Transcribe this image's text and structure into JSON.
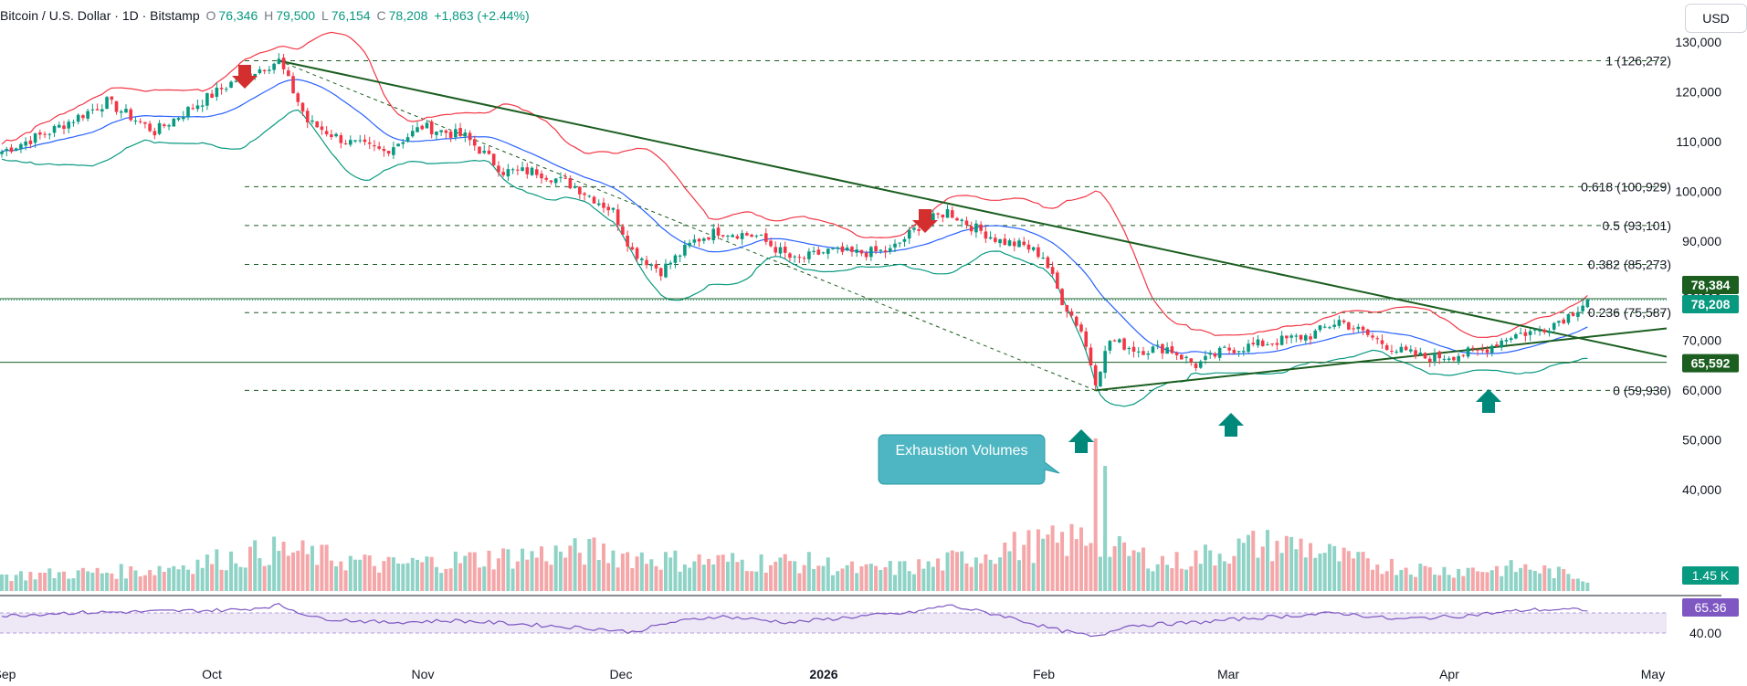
{
  "header": {
    "symbol": "Bitcoin / U.S. Dollar · 1D · Bitstamp",
    "open_label": "O",
    "open": "76,346",
    "high_label": "H",
    "high": "79,500",
    "low_label": "L",
    "low": "76,154",
    "close_label": "C",
    "close": "78,208",
    "change": "+1,863 (+2.44%)"
  },
  "currency_button": "USD",
  "chart_data": {
    "type": "candlestick",
    "price_axis": {
      "ticks": [
        "130,000",
        "120,000",
        "110,000",
        "100,000",
        "90,000",
        "80,000",
        "70,000",
        "60,000",
        "50,000",
        "40,000"
      ]
    },
    "time_axis": {
      "ticks": [
        "Sep",
        "Oct",
        "Nov",
        "Dec",
        "2026",
        "Feb",
        "Mar",
        "Apr",
        "May"
      ]
    },
    "fib_levels": [
      {
        "label": "1 (126,272)",
        "price": 126272
      },
      {
        "label": "0.618 (100,929)",
        "price": 100929
      },
      {
        "label": "0.5 (93,101)",
        "price": 93101
      },
      {
        "label": "0.382 (85,273)",
        "price": 85273
      },
      {
        "label": "0.236 (75,587)",
        "price": 75587
      },
      {
        "label": "0 (59,930)",
        "price": 59930
      }
    ],
    "price_badges": [
      {
        "text": "78,384",
        "price": 78384,
        "color": "#1b5e20"
      },
      {
        "text": "78,208",
        "price": 78208,
        "color": "#089981"
      },
      {
        "text": "65,592",
        "price": 65592,
        "color": "#1b5e20"
      }
    ],
    "horizontal_lines": [
      78384,
      65592
    ],
    "annotation": "Exhaustion Volumes",
    "volume_badge": "1.45 K",
    "rsi": {
      "value": "65.36",
      "ticks": [
        "40.00"
      ],
      "upper": 70,
      "lower": 30
    },
    "colors": {
      "up": "#089981",
      "down": "#f23645",
      "up_volume": "#8fd3c7",
      "down_volume": "#f5a6a8",
      "bb_upper": "#f23645",
      "bb_basis": "#2962ff",
      "bb_lower": "#089981",
      "trendline": "#1b5e20",
      "rsi_line": "#7e57c2",
      "rsi_band": "#ede7f6",
      "arrow_down": "#d32f2f",
      "arrow_up": "#00897b",
      "callout": "#4db6c2"
    },
    "candle_anchors": [
      [
        0,
        108000
      ],
      [
        10,
        112000
      ],
      [
        22,
        118000
      ],
      [
        32,
        112000
      ],
      [
        40,
        117000
      ],
      [
        50,
        123000
      ],
      [
        58,
        126272
      ],
      [
        64,
        114000
      ],
      [
        72,
        110000
      ],
      [
        80,
        108000
      ],
      [
        88,
        113000
      ],
      [
        97,
        111000
      ],
      [
        105,
        104000
      ],
      [
        112,
        104000
      ],
      [
        120,
        101000
      ],
      [
        128,
        96000
      ],
      [
        132,
        88000
      ],
      [
        138,
        84000
      ],
      [
        145,
        90000
      ],
      [
        150,
        92000
      ],
      [
        158,
        91000
      ],
      [
        166,
        86000
      ],
      [
        173,
        88000
      ],
      [
        178,
        87500
      ],
      [
        186,
        88000
      ],
      [
        192,
        93000
      ],
      [
        198,
        96000
      ],
      [
        203,
        93000
      ],
      [
        209,
        90000
      ],
      [
        214,
        89000
      ],
      [
        218,
        87000
      ],
      [
        222,
        78000
      ],
      [
        226,
        72000
      ],
      [
        229,
        62000
      ],
      [
        232,
        70000
      ],
      [
        238,
        68000
      ],
      [
        244,
        68500
      ],
      [
        250,
        65000
      ],
      [
        256,
        68000
      ],
      [
        262,
        69000
      ],
      [
        268,
        70000
      ],
      [
        274,
        71000
      ],
      [
        280,
        74000
      ],
      [
        286,
        71000
      ],
      [
        292,
        68000
      ],
      [
        298,
        66500
      ],
      [
        304,
        67000
      ],
      [
        310,
        68000
      ],
      [
        316,
        71000
      ],
      [
        322,
        72000
      ],
      [
        328,
        75000
      ],
      [
        332,
        78208
      ]
    ],
    "volume_anchors": [
      [
        0,
        30
      ],
      [
        30,
        40
      ],
      [
        58,
        80
      ],
      [
        80,
        50
      ],
      [
        110,
        70
      ],
      [
        124,
        78
      ],
      [
        140,
        60
      ],
      [
        170,
        55
      ],
      [
        180,
        40
      ],
      [
        195,
        50
      ],
      [
        210,
        85
      ],
      [
        222,
        95
      ],
      [
        229,
        110
      ],
      [
        233,
        80
      ],
      [
        245,
        55
      ],
      [
        262,
        90
      ],
      [
        272,
        90
      ],
      [
        282,
        60
      ],
      [
        300,
        40
      ],
      [
        320,
        45
      ],
      [
        332,
        25
      ]
    ],
    "rsi_anchors": [
      [
        0,
        55
      ],
      [
        12,
        60
      ],
      [
        30,
        62
      ],
      [
        50,
        65
      ],
      [
        58,
        72
      ],
      [
        66,
        52
      ],
      [
        80,
        45
      ],
      [
        95,
        48
      ],
      [
        110,
        42
      ],
      [
        125,
        35
      ],
      [
        132,
        30
      ],
      [
        140,
        45
      ],
      [
        150,
        55
      ],
      [
        165,
        45
      ],
      [
        180,
        55
      ],
      [
        190,
        60
      ],
      [
        198,
        72
      ],
      [
        210,
        55
      ],
      [
        220,
        35
      ],
      [
        229,
        22
      ],
      [
        235,
        40
      ],
      [
        250,
        45
      ],
      [
        262,
        52
      ],
      [
        280,
        60
      ],
      [
        292,
        50
      ],
      [
        305,
        55
      ],
      [
        320,
        65
      ],
      [
        332,
        65
      ]
    ]
  }
}
